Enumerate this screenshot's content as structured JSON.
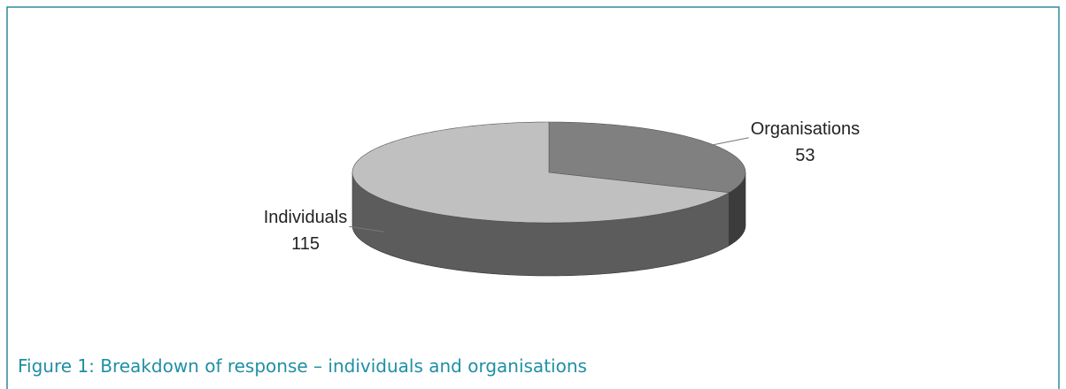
{
  "chart_data": {
    "type": "pie",
    "title": "Figure 1: Breakdown of response – individuals and organisations",
    "categories": [
      "Organisations",
      "Individuals"
    ],
    "values": [
      53,
      115
    ],
    "colors": [
      "#808080",
      "#c0c0c0"
    ],
    "side_colors": [
      "#3c3c3c",
      "#5c5c5c"
    ]
  }
}
